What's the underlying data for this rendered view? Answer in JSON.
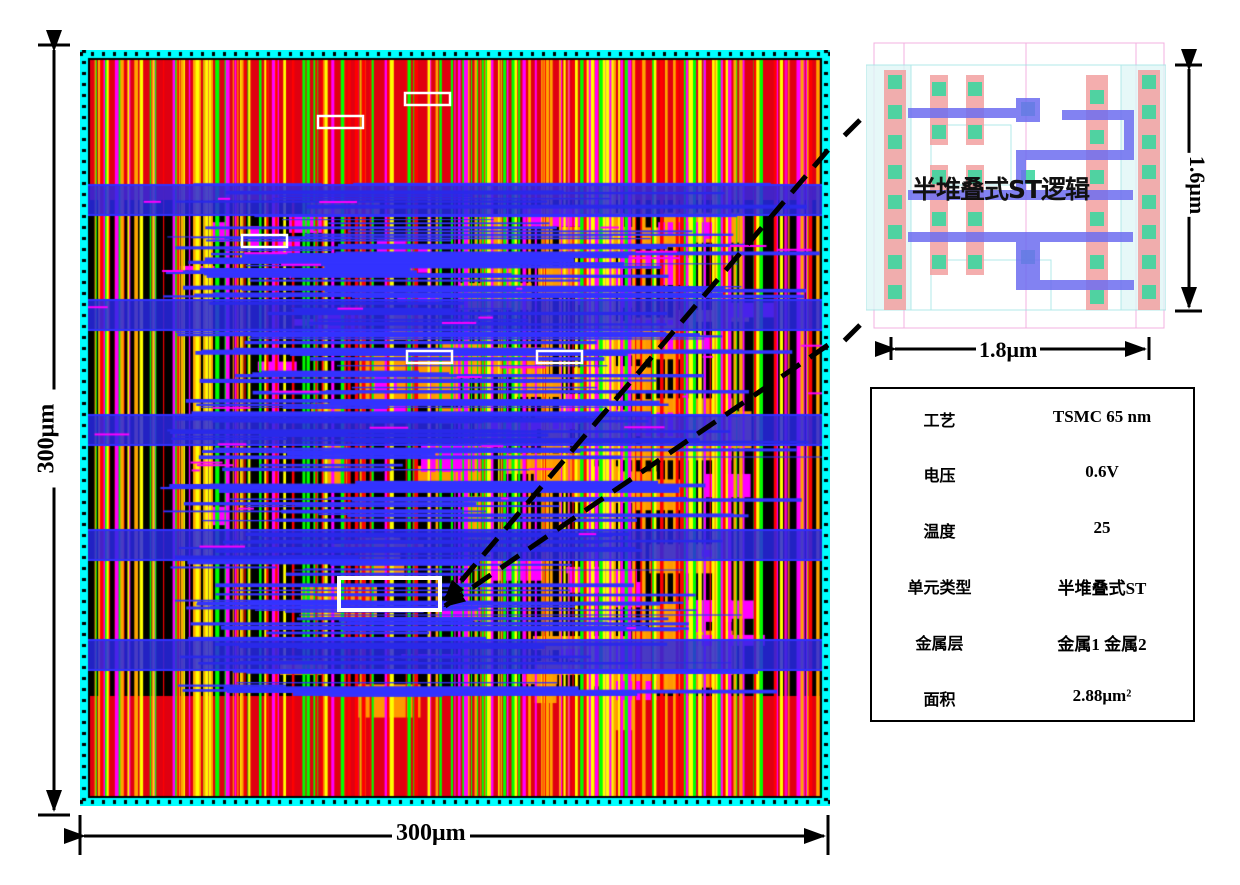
{
  "figure": {
    "chip_width_label": "300μm",
    "chip_height_label": "300μm",
    "inset": {
      "title": "半堆叠式ST逻辑",
      "width_label": "1.8μm",
      "height_label": "1.6μm"
    },
    "layer_colors": {
      "metal1": "#3333ff",
      "metal2": "#ff00ff",
      "poly": "#ff0000",
      "diffusion": "#00ff00",
      "via": "#ffa500",
      "boundary": "#00ffff"
    },
    "spec_table": [
      {
        "key": "工艺",
        "value": "TSMC 65 nm"
      },
      {
        "key": "电压",
        "value": "0.6V"
      },
      {
        "key": "温度",
        "value": "25"
      },
      {
        "key": "单元类型",
        "value": "半堆叠式ST"
      },
      {
        "key": "金属层",
        "value": "金属1 金属2"
      },
      {
        "key": "面积",
        "value": "2.88μm²"
      }
    ]
  }
}
